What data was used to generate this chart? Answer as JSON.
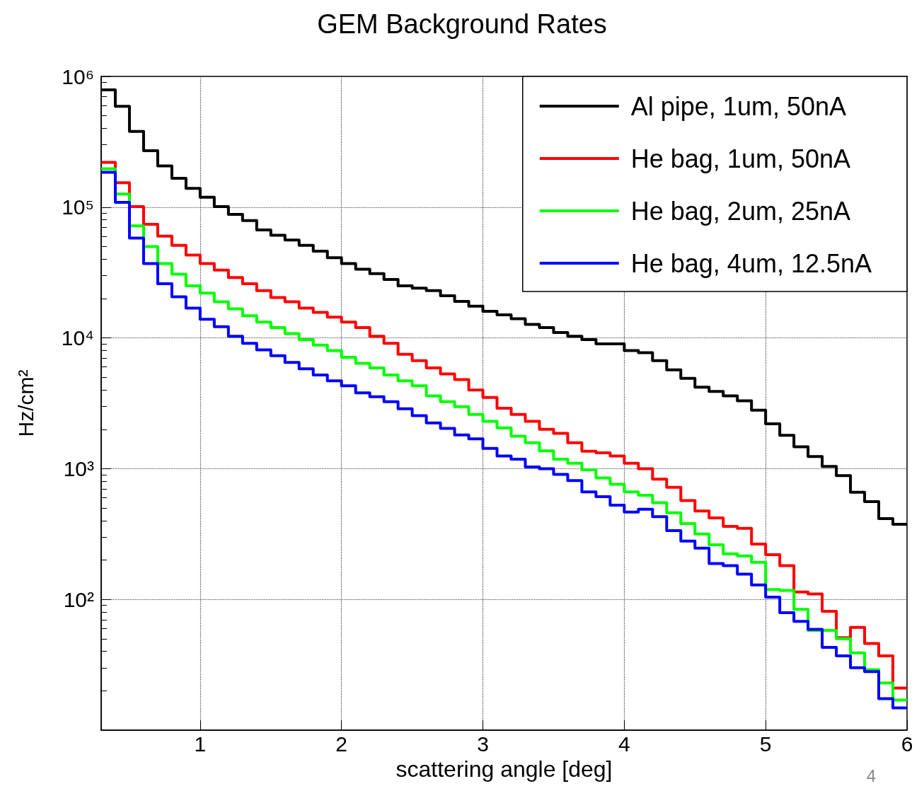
{
  "chart_data": {
    "type": "histogram",
    "title": "GEM Background Rates",
    "xlabel": "scattering angle [deg]",
    "ylabel": "Hz/cm²",
    "bins": [
      0.3,
      0.4,
      0.5,
      0.6,
      0.7,
      0.8,
      0.9,
      1.0,
      1.1,
      1.2,
      1.3,
      1.4,
      1.5,
      1.6,
      1.7,
      1.8,
      1.9,
      2.0,
      2.1,
      2.2,
      2.3,
      2.4,
      2.5,
      2.6,
      2.7,
      2.8,
      2.9,
      3.0,
      3.1,
      3.2,
      3.3,
      3.4,
      3.5,
      3.6,
      3.7,
      3.8,
      3.9,
      4.0,
      4.1,
      4.2,
      4.3,
      4.4,
      4.5,
      4.6,
      4.7,
      4.8,
      4.9,
      5.0,
      5.1,
      5.2,
      5.3,
      5.4,
      5.5,
      5.6,
      5.7,
      5.8,
      5.9,
      6.0
    ],
    "series": [
      {
        "name": "Al pipe, 1um, 50nA",
        "color": "#000000",
        "values": [
          790000,
          590000,
          380000,
          270000,
          207000,
          166000,
          139000,
          119000,
          101000,
          88000,
          79000,
          67000,
          61000,
          56000,
          51000,
          46000,
          41000,
          37000,
          33500,
          31000,
          28000,
          25000,
          24000,
          23000,
          21000,
          19000,
          17500,
          16000,
          15000,
          14000,
          12700,
          12000,
          11000,
          10300,
          9700,
          9000,
          9000,
          8000,
          7700,
          6700,
          5700,
          4900,
          4200,
          3900,
          3600,
          3300,
          2800,
          2200,
          1800,
          1470,
          1240,
          1040,
          885,
          660,
          560,
          415,
          376
        ]
      },
      {
        "name": "He bag, 1um, 50nA",
        "color": "#ff0000",
        "values": [
          220000,
          154000,
          101000,
          74000,
          60000,
          51000,
          43000,
          37000,
          33000,
          29000,
          26000,
          23000,
          20400,
          18900,
          16900,
          15700,
          14400,
          13200,
          12000,
          10300,
          9100,
          7500,
          6700,
          5900,
          5300,
          4800,
          4000,
          3500,
          2900,
          2600,
          2300,
          2000,
          1860,
          1580,
          1360,
          1320,
          1250,
          1100,
          1000,
          830,
          720,
          570,
          475,
          420,
          362,
          350,
          265,
          220,
          181,
          114,
          110,
          81,
          51,
          61,
          46,
          37,
          21
        ]
      },
      {
        "name": "He bag, 2um, 25nA",
        "color": "#00ff00",
        "values": [
          197000,
          126000,
          72000,
          50000,
          37000,
          30700,
          25000,
          22000,
          18900,
          16700,
          14800,
          13200,
          12000,
          10800,
          9700,
          8800,
          8000,
          7100,
          6400,
          5900,
          5200,
          4700,
          4300,
          3600,
          3250,
          2980,
          2600,
          2300,
          2050,
          1770,
          1580,
          1370,
          1180,
          1100,
          980,
          850,
          760,
          665,
          625,
          550,
          460,
          380,
          316,
          262,
          223,
          215,
          192,
          119,
          117,
          84,
          58,
          58,
          50,
          39,
          29,
          23,
          17
        ]
      },
      {
        "name": "He bag, 4um, 12.5nA",
        "color": "#0000ff",
        "values": [
          185000,
          109000,
          58000,
          37000,
          26000,
          20600,
          16900,
          13900,
          12200,
          10300,
          9100,
          8100,
          7300,
          6500,
          5800,
          5200,
          4700,
          4300,
          3800,
          3550,
          3250,
          2870,
          2540,
          2240,
          2030,
          1810,
          1690,
          1430,
          1250,
          1180,
          1030,
          1000,
          905,
          810,
          665,
          610,
          525,
          465,
          490,
          430,
          336,
          279,
          247,
          188,
          181,
          156,
          129,
          104,
          79,
          68,
          59,
          43,
          37,
          30,
          28,
          17.4,
          14.8
        ]
      }
    ],
    "xlim": [
      0.3,
      6
    ],
    "xticks": [
      1,
      2,
      3,
      4,
      5,
      6
    ],
    "ylim": [
      10,
      1000000
    ],
    "yticks": [
      {
        "value": 100,
        "label": "10²"
      },
      {
        "value": 1000,
        "label": "10³"
      },
      {
        "value": 10000,
        "label": "10⁴"
      },
      {
        "value": 100000,
        "label": "10⁵"
      },
      {
        "value": 1000000,
        "label": "10⁶"
      }
    ],
    "log": "y",
    "grid": true,
    "legend": "top right",
    "line_style": "solid",
    "annotations": [
      "4"
    ]
  }
}
